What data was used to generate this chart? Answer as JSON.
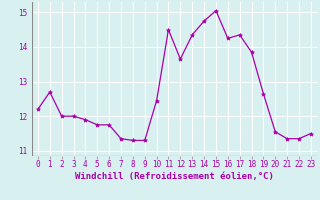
{
  "x": [
    0,
    1,
    2,
    3,
    4,
    5,
    6,
    7,
    8,
    9,
    10,
    11,
    12,
    13,
    14,
    15,
    16,
    17,
    18,
    19,
    20,
    21,
    22,
    23
  ],
  "y": [
    12.2,
    12.7,
    12.0,
    12.0,
    11.9,
    11.75,
    11.75,
    11.35,
    11.3,
    11.3,
    12.45,
    14.5,
    13.65,
    14.35,
    14.75,
    15.05,
    14.25,
    14.35,
    13.85,
    12.65,
    11.55,
    11.35,
    11.35,
    11.5
  ],
  "line_color": "#aa00aa",
  "marker": "*",
  "marker_size": 3,
  "xlim": [
    -0.5,
    23.5
  ],
  "ylim": [
    10.85,
    15.3
  ],
  "yticks": [
    11,
    12,
    13,
    14,
    15
  ],
  "xticks": [
    0,
    1,
    2,
    3,
    4,
    5,
    6,
    7,
    8,
    9,
    10,
    11,
    12,
    13,
    14,
    15,
    16,
    17,
    18,
    19,
    20,
    21,
    22,
    23
  ],
  "xlabel": "Windchill (Refroidissement éolien,°C)",
  "background_color": "#d8f0f0",
  "grid_color": "#b8d8d8",
  "tick_labelsize": 5.5,
  "xlabel_fontsize": 6.5
}
